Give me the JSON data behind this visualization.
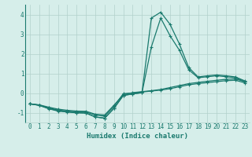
{
  "x": [
    0,
    1,
    2,
    3,
    4,
    5,
    6,
    7,
    8,
    9,
    10,
    11,
    12,
    13,
    14,
    15,
    16,
    17,
    18,
    19,
    20,
    21,
    22,
    23
  ],
  "line1": [
    -0.55,
    -0.6,
    -0.72,
    -0.82,
    -0.88,
    -0.92,
    -0.93,
    -1.08,
    -1.12,
    -0.62,
    -0.08,
    0.02,
    0.07,
    0.12,
    0.18,
    0.28,
    0.38,
    0.48,
    0.54,
    0.6,
    0.65,
    0.7,
    0.72,
    0.58
  ],
  "line2": [
    -0.55,
    -0.62,
    -0.75,
    -0.87,
    -0.92,
    -0.97,
    -0.97,
    -1.12,
    -1.18,
    -0.68,
    -0.03,
    0.0,
    0.05,
    0.1,
    0.15,
    0.22,
    0.32,
    0.42,
    0.48,
    0.53,
    0.58,
    0.63,
    0.65,
    0.52
  ],
  "line3": [
    -0.55,
    -0.62,
    -0.78,
    -0.9,
    -0.95,
    -1.0,
    -1.02,
    -1.22,
    -1.28,
    -0.78,
    -0.12,
    -0.05,
    0.02,
    3.82,
    4.12,
    3.5,
    2.5,
    1.3,
    0.82,
    0.88,
    0.92,
    0.88,
    0.82,
    0.62
  ],
  "line4": [
    -0.55,
    -0.63,
    -0.8,
    -0.92,
    -0.97,
    -1.01,
    -1.02,
    -1.22,
    -1.28,
    -0.78,
    -0.12,
    -0.05,
    0.02,
    2.35,
    3.82,
    2.92,
    2.18,
    1.18,
    0.78,
    0.83,
    0.88,
    0.83,
    0.78,
    0.58
  ],
  "color": "#1a7a6e",
  "bg_color": "#d6eeea",
  "grid_color": "#b2d0cb",
  "xlabel": "Humidex (Indice chaleur)",
  "ylim": [
    -1.5,
    4.5
  ],
  "xlim": [
    -0.5,
    23.5
  ],
  "yticks": [
    -1,
    0,
    1,
    2,
    3,
    4
  ],
  "xticks": [
    0,
    1,
    2,
    3,
    4,
    5,
    6,
    7,
    8,
    9,
    10,
    11,
    12,
    13,
    14,
    15,
    16,
    17,
    18,
    19,
    20,
    21,
    22,
    23
  ],
  "xlabel_fontsize": 6.5,
  "tick_fontsize": 5.5,
  "linewidth": 0.9,
  "markersize": 2.5
}
